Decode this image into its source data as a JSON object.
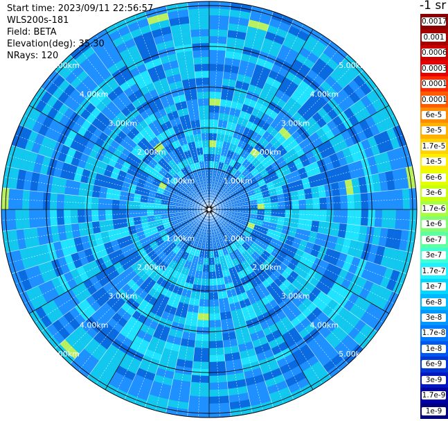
{
  "header": {
    "start_time": "Start time: 2023/09/11 22:56:57",
    "instrument": "WLS200s-181",
    "field": "Field: BETA",
    "elevation": "Elevation(deg): 35.30",
    "nrays": "NRays: 120"
  },
  "units": "-1 sr",
  "chart_data": {
    "type": "polar_ppi",
    "field": "BETA",
    "elevation_deg": 35.3,
    "n_rays": 120,
    "range_rings_km": [
      1.0,
      2.0,
      3.0,
      4.0,
      5.0
    ],
    "ring_labels": [
      "1.00km",
      "2.00km",
      "3.00km",
      "4.00km",
      "5.00km"
    ],
    "max_range_km": 5.0,
    "colorbar_ticks": [
      "0.0017",
      "0.001",
      "0.0006",
      "0.0003",
      "0.00017",
      "0.0001",
      "6e-5",
      "3e-5",
      "1.7e-5",
      "1e-5",
      "6e-6",
      "3e-6",
      "1.7e-6",
      "1e-6",
      "6e-7",
      "3e-7",
      "1.7e-7",
      "1e-7",
      "6e-8",
      "3e-8",
      "1.7e-8",
      "1e-8",
      "6e-9",
      "3e-9",
      "1.7e-9",
      "1e-9"
    ],
    "colorbar_colors": [
      "#8b0000",
      "#a50000",
      "#c80000",
      "#e60000",
      "#ff2a00",
      "#ff5a00",
      "#ff8c00",
      "#ffb000",
      "#ffd200",
      "#ffee00",
      "#e8ff00",
      "#c8ff10",
      "#a8ff40",
      "#80ff70",
      "#60ffa0",
      "#40ffd0",
      "#20f0ff",
      "#00d8ff",
      "#00b8ff",
      "#0098ff",
      "#0078ff",
      "#0058f0",
      "#0038d8",
      "#0018c0",
      "#0000a0",
      "#000080"
    ],
    "colors": {
      "background": "#1e90ff",
      "dominant": [
        "#1e90ff",
        "#0a6ae0",
        "#1478ee",
        "#12c8ee",
        "#20e4ff"
      ],
      "hotspot": "#b8f060"
    }
  }
}
